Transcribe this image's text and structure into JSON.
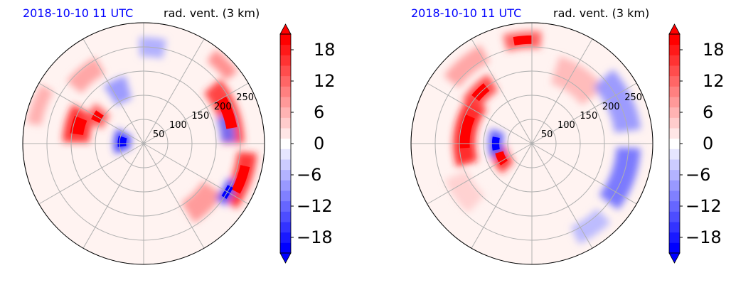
{
  "chart_data": [
    {
      "type": "heatmap",
      "projection": "polar",
      "title_left": "2018-10-10 11 UTC",
      "title_right": "rad. vent. (3 km)",
      "radial_ticks": [
        "50",
        "100",
        "150",
        "200",
        "250"
      ],
      "radial_tick_values": [
        50,
        100,
        150,
        200,
        250
      ],
      "r_max": 250,
      "grid": true,
      "colorbar": {
        "cmap": "bwr",
        "range": [
          -21,
          21
        ],
        "ticks": [
          -18,
          -12,
          -6,
          0,
          6,
          12,
          18
        ],
        "tick_labels": [
          "−18",
          "−12",
          "−6",
          "0",
          "6",
          "12",
          "18"
        ],
        "extend": "both"
      },
      "features": [
        {
          "kind": "pos",
          "r": 140,
          "theta": 165,
          "rw": 55,
          "tw": 28,
          "v": 18
        },
        {
          "kind": "pos",
          "r": 110,
          "theta": 150,
          "rw": 40,
          "tw": 20,
          "v": 14
        },
        {
          "kind": "pos",
          "r": 185,
          "theta": 130,
          "rw": 40,
          "tw": 22,
          "v": 8
        },
        {
          "kind": "pos",
          "r": 230,
          "theta": 160,
          "rw": 30,
          "tw": 20,
          "v": 7
        },
        {
          "kind": "neg",
          "r": 45,
          "theta": 175,
          "rw": 35,
          "tw": 50,
          "v": -16
        },
        {
          "kind": "neg",
          "r": 120,
          "theta": 115,
          "rw": 50,
          "tw": 20,
          "v": -9
        },
        {
          "kind": "neg",
          "r": 200,
          "theta": 85,
          "rw": 40,
          "tw": 15,
          "v": -7
        },
        {
          "kind": "pos",
          "r": 185,
          "theta": 20,
          "rw": 45,
          "tw": 40,
          "v": 17
        },
        {
          "kind": "pos",
          "r": 215,
          "theta": -20,
          "rw": 40,
          "tw": 30,
          "v": 18
        },
        {
          "kind": "pos",
          "r": 170,
          "theta": -45,
          "rw": 50,
          "tw": 25,
          "v": 9
        },
        {
          "kind": "neg",
          "r": 175,
          "theta": 10,
          "rw": 30,
          "tw": 18,
          "v": -12
        },
        {
          "kind": "neg",
          "r": 200,
          "theta": -30,
          "rw": 25,
          "tw": 15,
          "v": -14
        },
        {
          "kind": "pos",
          "r": 230,
          "theta": 45,
          "rw": 30,
          "tw": 15,
          "v": 10
        }
      ]
    },
    {
      "type": "heatmap",
      "projection": "polar",
      "title_left": "2018-10-10 11 UTC",
      "title_right": "rad. vent. (3 km)",
      "radial_ticks": [
        "50",
        "100",
        "150",
        "200",
        "250"
      ],
      "radial_tick_values": [
        50,
        100,
        150,
        200,
        250
      ],
      "r_max": 250,
      "grid": true,
      "colorbar": {
        "cmap": "bwr",
        "range": [
          -21,
          21
        ],
        "ticks": [
          -18,
          -12,
          -6,
          0,
          6,
          12,
          18
        ],
        "tick_labels": [
          "−18",
          "−12",
          "−6",
          "0",
          "6",
          "12",
          "18"
        ],
        "extend": "both"
      },
      "features": [
        {
          "kind": "pos",
          "r": 140,
          "theta": 170,
          "rw": 45,
          "tw": 55,
          "v": 19
        },
        {
          "kind": "pos",
          "r": 150,
          "theta": 135,
          "rw": 40,
          "tw": 25,
          "v": 16
        },
        {
          "kind": "pos",
          "r": 70,
          "theta": 205,
          "rw": 35,
          "tw": 40,
          "v": 18
        },
        {
          "kind": "pos",
          "r": 215,
          "theta": 95,
          "rw": 35,
          "tw": 20,
          "v": 14
        },
        {
          "kind": "pos",
          "r": 210,
          "theta": 130,
          "rw": 40,
          "tw": 25,
          "v": 8
        },
        {
          "kind": "pos",
          "r": 160,
          "theta": 55,
          "rw": 60,
          "tw": 35,
          "v": 6
        },
        {
          "kind": "neg",
          "r": 75,
          "theta": 180,
          "rw": 30,
          "tw": 40,
          "v": -14
        },
        {
          "kind": "neg",
          "r": 200,
          "theta": 25,
          "rw": 55,
          "tw": 35,
          "v": -9
        },
        {
          "kind": "neg",
          "r": 200,
          "theta": -20,
          "rw": 50,
          "tw": 35,
          "v": -12
        },
        {
          "kind": "neg",
          "r": 210,
          "theta": -55,
          "rw": 40,
          "tw": 20,
          "v": -6
        },
        {
          "kind": "pos",
          "r": 170,
          "theta": 215,
          "rw": 50,
          "tw": 25,
          "v": 4
        }
      ]
    }
  ]
}
